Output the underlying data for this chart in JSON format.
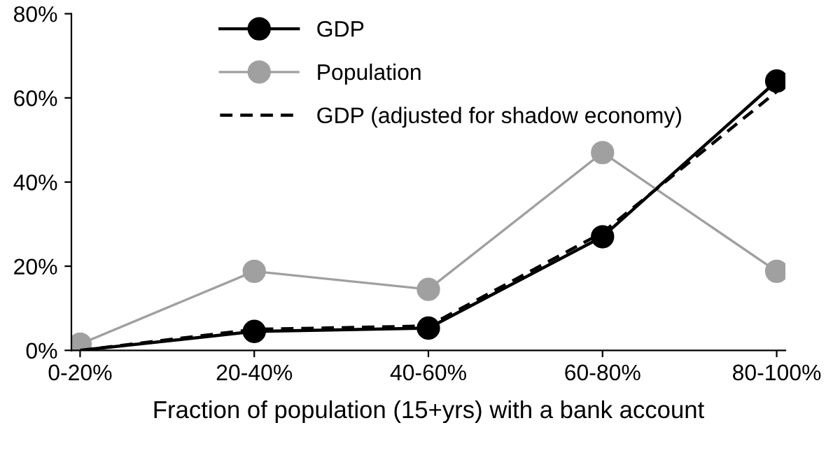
{
  "chart_data": {
    "type": "line",
    "xlabel": "Fraction of population (15+yrs) with a bank account",
    "categories": [
      "0-20%",
      "20-40%",
      "40-60%",
      "60-80%",
      "80-100%"
    ],
    "series": [
      {
        "name": "GDP",
        "color": "#000000",
        "values": [
          0,
          4.5,
          5.3,
          27,
          64
        ],
        "marker": "circle",
        "line_style": "solid"
      },
      {
        "name": "Population",
        "color": "#a0a0a0",
        "values": [
          1.5,
          18.8,
          14.5,
          47,
          18.8
        ],
        "marker": "circle",
        "line_style": "solid"
      },
      {
        "name": "GDP (adjusted for shadow economy)",
        "color": "#000000",
        "values": [
          0,
          5,
          5.8,
          28,
          61.5
        ],
        "marker": "none",
        "line_style": "dashed"
      }
    ],
    "ylim": [
      0,
      80
    ],
    "yticks": [
      {
        "value": 0,
        "label": "0%"
      },
      {
        "value": 20,
        "label": "20%"
      },
      {
        "value": 40,
        "label": "40%"
      },
      {
        "value": 60,
        "label": "60%"
      },
      {
        "value": 80,
        "label": "80%"
      }
    ],
    "grid": false,
    "legend": "top left"
  }
}
